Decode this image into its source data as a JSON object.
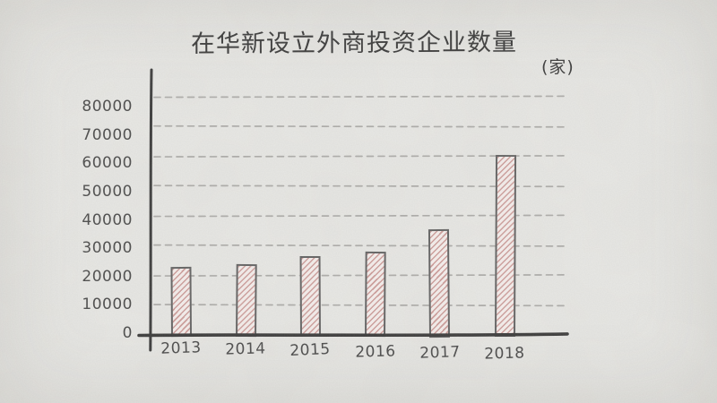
{
  "chart_data": {
    "type": "bar",
    "title": "在华新设立外商投资企业数量",
    "unit_label": "(家)",
    "categories": [
      "2013",
      "2014",
      "2015",
      "2016",
      "2017",
      "2018"
    ],
    "values": [
      22773,
      23778,
      26575,
      27900,
      35652,
      60533
    ],
    "xlabel": "",
    "ylabel": "(家)",
    "ylim": [
      0,
      80000
    ],
    "yticks": [
      0,
      10000,
      20000,
      30000,
      40000,
      50000,
      60000,
      70000,
      80000
    ],
    "grid": "horizontal-dashed",
    "legend": "none",
    "style": "hand-drawn sketch, pink diagonal-hatched bars on gray paper background"
  },
  "colors": {
    "paper": "#e9e9e6",
    "ink": "#3b3b3b",
    "axis": "#3a3a3a",
    "gridline": "#abaaa7",
    "bar_fill": "#f7f0ee",
    "bar_hatch": "#cf9f9c",
    "bar_border": "#626262",
    "tick_text": "#4a4a4a"
  }
}
